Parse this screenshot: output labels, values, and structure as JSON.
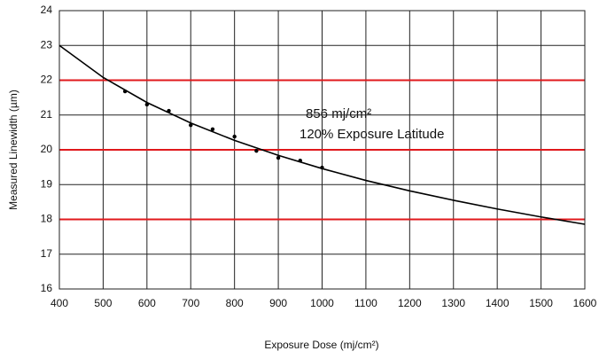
{
  "chart_data": {
    "type": "scatter",
    "xlabel": "Exposure Dose (mj/cm²)",
    "ylabel": "Measured Linewidth (µm)",
    "annotations": [
      "856 mj/cm²",
      "120% Exposure Latitude"
    ],
    "xlim": [
      400,
      1600
    ],
    "xticks": [
      400,
      500,
      600,
      700,
      800,
      900,
      1000,
      1100,
      1200,
      1300,
      1400,
      1500,
      1600
    ],
    "ylim": [
      16,
      24
    ],
    "yticks": [
      16,
      17,
      18,
      19,
      20,
      21,
      22,
      23,
      24
    ],
    "grid": true,
    "grid_color": "#222222",
    "reference_lines": [
      18,
      20,
      22
    ],
    "reference_color": "#e0191c",
    "series": [
      {
        "mode": "markers",
        "color": "#000000",
        "x": [
          550,
          600,
          650,
          700,
          750,
          800,
          850,
          900,
          950,
          1000
        ],
        "values": [
          21.68,
          21.3,
          21.12,
          20.71,
          20.59,
          20.38,
          19.97,
          19.77,
          19.69,
          19.49
        ]
      },
      {
        "mode": "line",
        "color": "#000000",
        "x": [
          400,
          500,
          600,
          700,
          800,
          900,
          1000,
          1100,
          1200,
          1300,
          1400,
          1500,
          1600
        ],
        "values": [
          23.0,
          22.08,
          21.36,
          20.77,
          20.27,
          19.84,
          19.46,
          19.12,
          18.82,
          18.55,
          18.3,
          18.07,
          17.86
        ]
      }
    ]
  }
}
